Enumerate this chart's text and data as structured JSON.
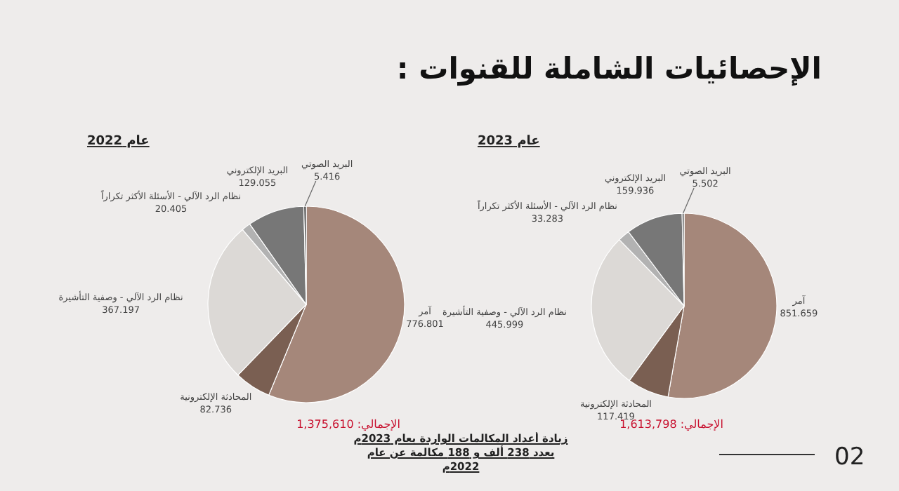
{
  "chart_data": [
    {
      "type": "pie",
      "title": "عام 2022",
      "categories": [
        "آمر",
        "المحادثة الإلكترونية",
        "نظام الرد الآلي - وصفية التأشيرة",
        "نظام الرد الآلي - الأسئلة الأكثر تكراراً",
        "البريد الإلكتروني",
        "البريد الصوتي"
      ],
      "values": [
        776.801,
        82.736,
        367.197,
        20.405,
        129.055,
        5.416
      ],
      "data_labels": true,
      "colors": [
        "#a5877a",
        "#7a5f52",
        "#dcd9d6",
        "#b2b2b2",
        "#777777",
        "#474747"
      ],
      "annotations": [
        "الإجمالي: 1,375,610",
        "الإحصائيات الشاملة للقنوات :",
        "زيادة أعداد المكالمات الواردة بعام 2023م بعدد 238 ألف و 188 مكالمة عن عام 2022م",
        "02"
      ]
    },
    {
      "type": "pie",
      "title": "عام 2023",
      "categories": [
        "آمر",
        "المحادثة الإلكترونية",
        "نظام الرد الآلي - وصفية التأشيرة",
        "نظام الرد الآلي - الأسئلة الأكثر تكراراً",
        "البريد الإلكتروني",
        "البريد الصوتي"
      ],
      "values": [
        851.659,
        117.419,
        445.999,
        33.283,
        159.936,
        5.502
      ],
      "data_labels": true,
      "colors": [
        "#a5877a",
        "#7a5f52",
        "#dcd9d6",
        "#b2b2b2",
        "#777777",
        "#474747"
      ],
      "annotations": [
        "الإجمالي: 1,613,798"
      ]
    }
  ]
}
